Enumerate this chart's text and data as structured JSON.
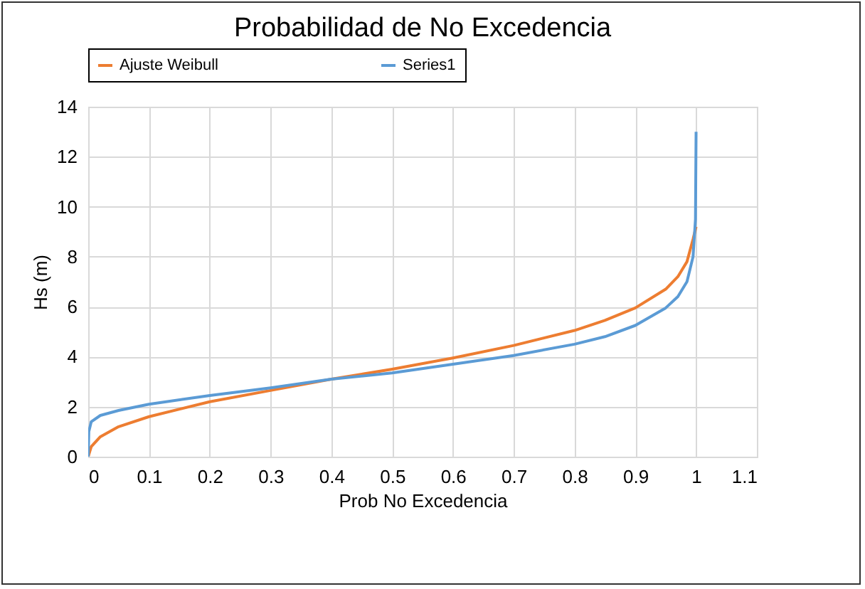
{
  "chart_data": {
    "type": "line",
    "title": "Probabilidad de No Excedencia",
    "xlabel": "Prob No Excedencia",
    "ylabel": "Hs (m)",
    "xlim": [
      0,
      1.1
    ],
    "xticks": [
      0,
      0.1,
      0.2,
      0.3,
      0.4,
      0.5,
      0.6,
      0.7,
      0.8,
      0.9,
      1,
      1.1
    ],
    "ylim": [
      0,
      14
    ],
    "yticks": [
      0,
      2,
      4,
      6,
      8,
      10,
      12,
      14
    ],
    "grid": true,
    "legend": "top",
    "marker": "none",
    "line_style": "solid",
    "series": [
      {
        "name": "Ajuste Weibull",
        "color": "#ed7d31",
        "x": [
          0,
          0.005,
          0.02,
          0.05,
          0.1,
          0.2,
          0.3,
          0.4,
          0.5,
          0.6,
          0.7,
          0.8,
          0.85,
          0.9,
          0.95,
          0.97,
          0.985,
          0.995,
          1
        ],
        "values": [
          0,
          0.4,
          0.8,
          1.2,
          1.6,
          2.2,
          2.65,
          3.1,
          3.5,
          3.95,
          4.45,
          5.05,
          5.45,
          5.95,
          6.7,
          7.2,
          7.8,
          8.7,
          9.2
        ]
      },
      {
        "name": "Series1",
        "color": "#5b9bd5",
        "x": [
          0,
          0.001,
          0.005,
          0.02,
          0.05,
          0.1,
          0.2,
          0.3,
          0.4,
          0.5,
          0.6,
          0.7,
          0.8,
          0.85,
          0.9,
          0.95,
          0.97,
          0.985,
          0.995,
          0.999,
          1
        ],
        "values": [
          0,
          1.0,
          1.4,
          1.65,
          1.85,
          2.1,
          2.45,
          2.75,
          3.1,
          3.35,
          3.7,
          4.05,
          4.5,
          4.8,
          5.25,
          5.95,
          6.4,
          7.0,
          8.0,
          9.5,
          13.0
        ]
      }
    ]
  }
}
